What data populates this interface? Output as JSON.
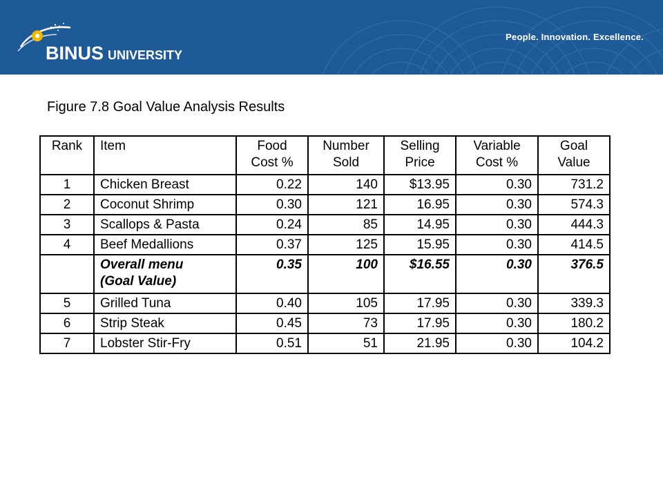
{
  "header": {
    "logo_main": "BINUS",
    "logo_sub": "UNIVERSITY",
    "tagline": "People. Innovation. Excellence.",
    "brand_color": "#1f5a98",
    "accent_color": "#f5b800"
  },
  "figure": {
    "title": "Figure 7.8  Goal Value Analysis Results"
  },
  "table": {
    "headers": {
      "rank": "Rank",
      "item": "Item",
      "food_cost_1": "Food",
      "food_cost_2": "Cost %",
      "number_sold_1": "Number",
      "number_sold_2": "Sold",
      "selling_price_1": "Selling",
      "selling_price_2": "Price",
      "variable_cost_1": "Variable",
      "variable_cost_2": "Cost %",
      "goal_value_1": "Goal",
      "goal_value_2": "Value"
    },
    "rows": [
      {
        "rank": "1",
        "item": "Chicken Breast",
        "food_cost": "0.22",
        "number_sold": "140",
        "selling_price": "$13.95",
        "variable_cost": "0.30",
        "goal_value": "731.2"
      },
      {
        "rank": "2",
        "item": "Coconut Shrimp",
        "food_cost": "0.30",
        "number_sold": "121",
        "selling_price": "16.95",
        "variable_cost": "0.30",
        "goal_value": "574.3"
      },
      {
        "rank": "3",
        "item": "Scallops & Pasta",
        "food_cost": "0.24",
        "number_sold": "85",
        "selling_price": "14.95",
        "variable_cost": "0.30",
        "goal_value": "444.3"
      },
      {
        "rank": "4",
        "item": "Beef Medallions",
        "food_cost": "0.37",
        "number_sold": "125",
        "selling_price": "15.95",
        "variable_cost": "0.30",
        "goal_value": "414.5"
      }
    ],
    "overall": {
      "rank": "",
      "item_1": "Overall menu",
      "item_2": "(Goal Value)",
      "food_cost": "0.35",
      "number_sold": "100",
      "selling_price": "$16.55",
      "variable_cost": "0.30",
      "goal_value": "376.5"
    },
    "rows_after": [
      {
        "rank": "5",
        "item": "Grilled Tuna",
        "food_cost": "0.40",
        "number_sold": "105",
        "selling_price": "17.95",
        "variable_cost": "0.30",
        "goal_value": "339.3"
      },
      {
        "rank": "6",
        "item": "Strip Steak",
        "food_cost": "0.45",
        "number_sold": "73",
        "selling_price": "17.95",
        "variable_cost": "0.30",
        "goal_value": "180.2"
      },
      {
        "rank": "7",
        "item": "Lobster Stir-Fry",
        "food_cost": "0.51",
        "number_sold": "51",
        "selling_price": "21.95",
        "variable_cost": "0.30",
        "goal_value": "104.2"
      }
    ]
  }
}
